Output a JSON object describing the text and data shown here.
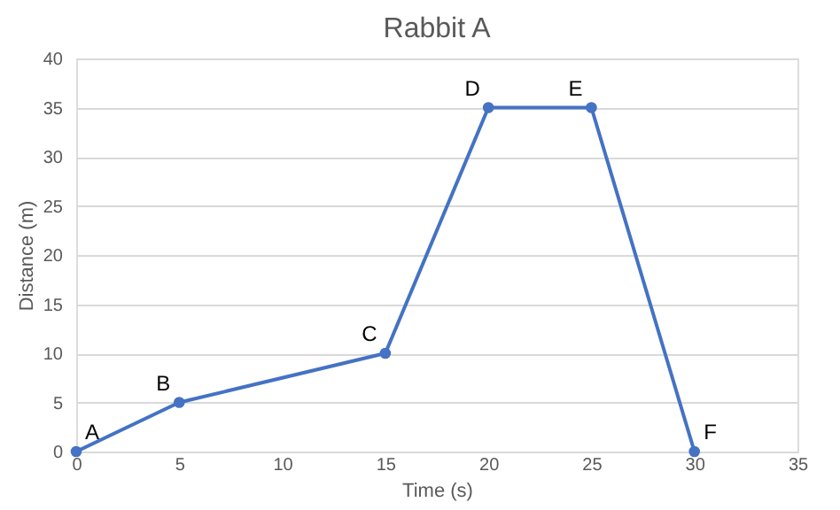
{
  "chart_data": {
    "type": "line",
    "title": "Rabbit A",
    "xlabel": "Time (s)",
    "ylabel": "Distance (m)",
    "x": [
      0,
      5,
      15,
      20,
      25,
      30
    ],
    "series": [
      {
        "color": "#4472c4",
        "values": [
          0,
          5,
          10,
          35,
          35,
          0
        ]
      }
    ],
    "xlim": [
      0,
      35
    ],
    "xticks": [
      0,
      5,
      10,
      15,
      20,
      25,
      30,
      35
    ],
    "ylim": [
      0,
      40
    ],
    "yticks": [
      0,
      5,
      10,
      15,
      20,
      25,
      30,
      35,
      40
    ],
    "grid": "y",
    "marker": "circle",
    "line_style": "solid",
    "annotations": [
      {
        "text": "A",
        "x": 0,
        "y": 0
      },
      {
        "text": "B",
        "x": 5,
        "y": 5
      },
      {
        "text": "C",
        "x": 15,
        "y": 10
      },
      {
        "text": "D",
        "x": 20,
        "y": 35
      },
      {
        "text": "E",
        "x": 25,
        "y": 35
      },
      {
        "text": "F",
        "x": 30,
        "y": 0
      }
    ]
  }
}
